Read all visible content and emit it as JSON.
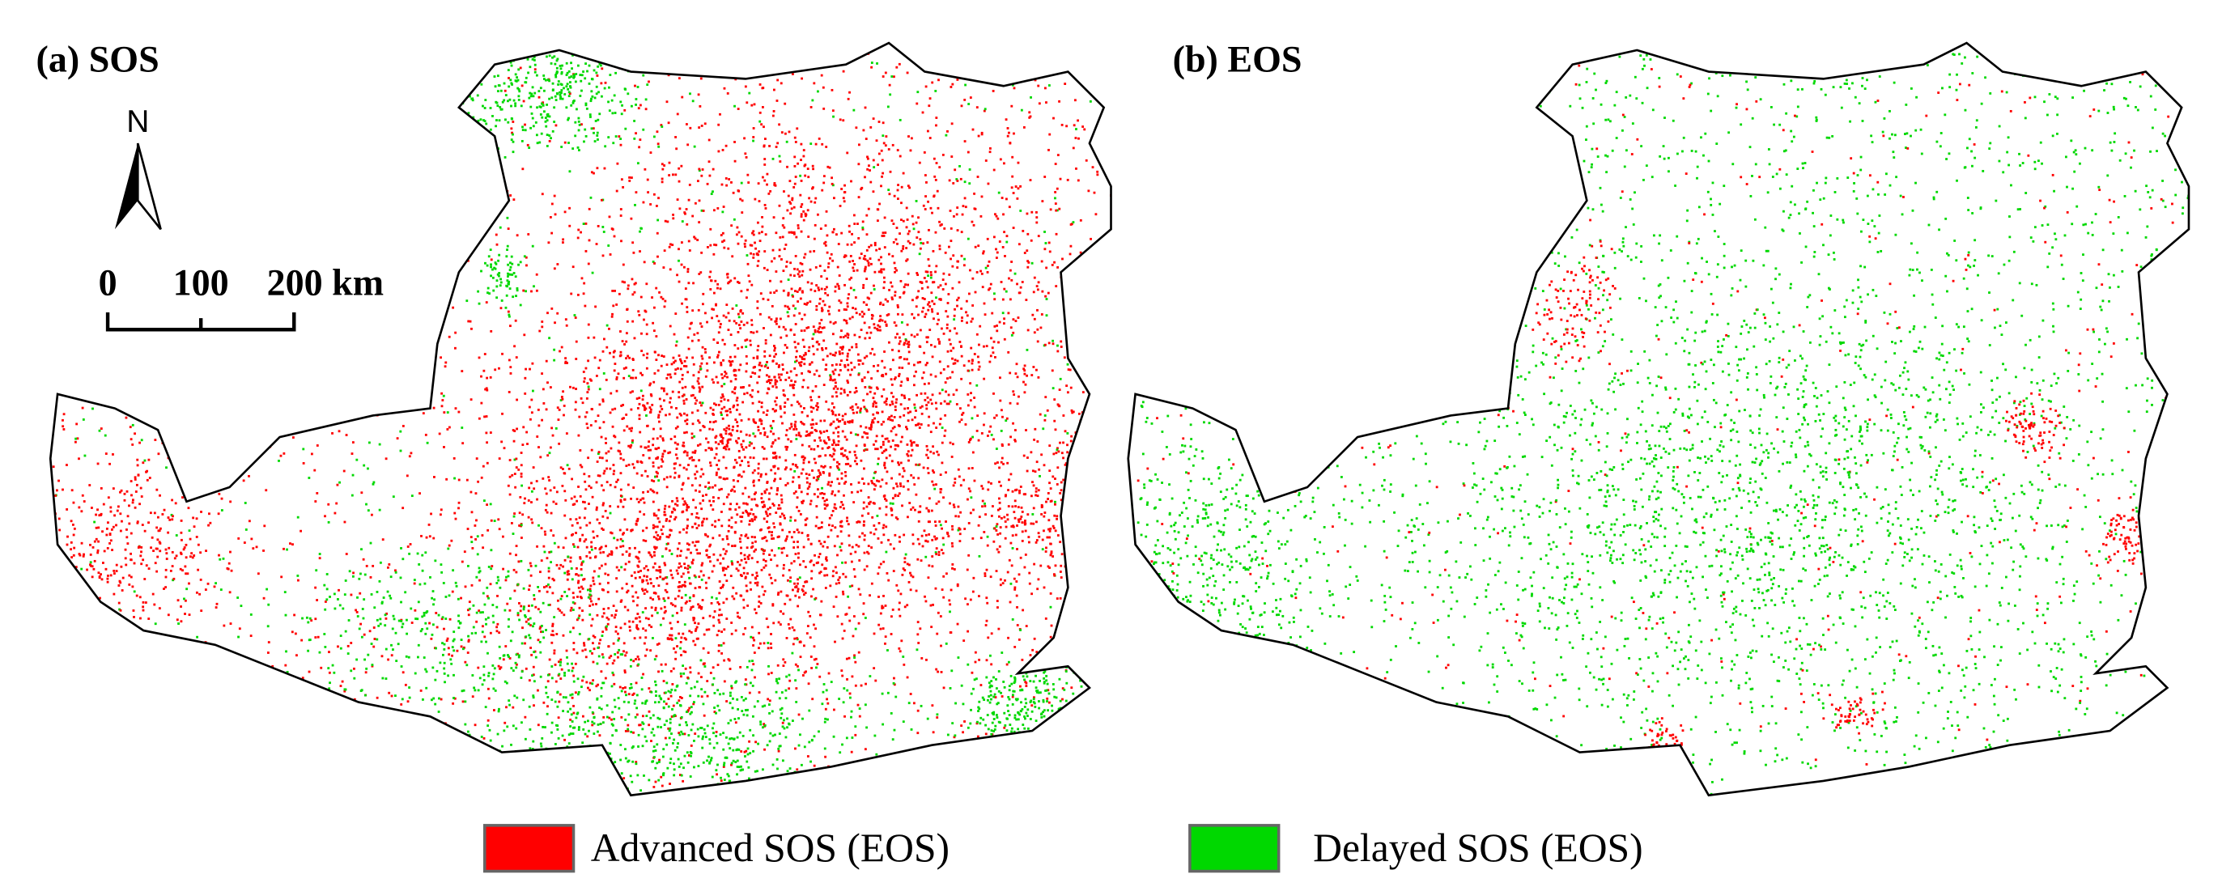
{
  "panels": [
    {
      "label": "(a) SOS"
    },
    {
      "label": "(b) EOS"
    }
  ],
  "north_arrow": "N",
  "scale_bar": {
    "ticks": [
      "0",
      "100",
      "200 km"
    ]
  },
  "legend": [
    {
      "label": "Advanced SOS (EOS)",
      "color": "#ff0000"
    },
    {
      "label": "Delayed SOS (EOS)",
      "color": "#00d800"
    }
  ]
}
